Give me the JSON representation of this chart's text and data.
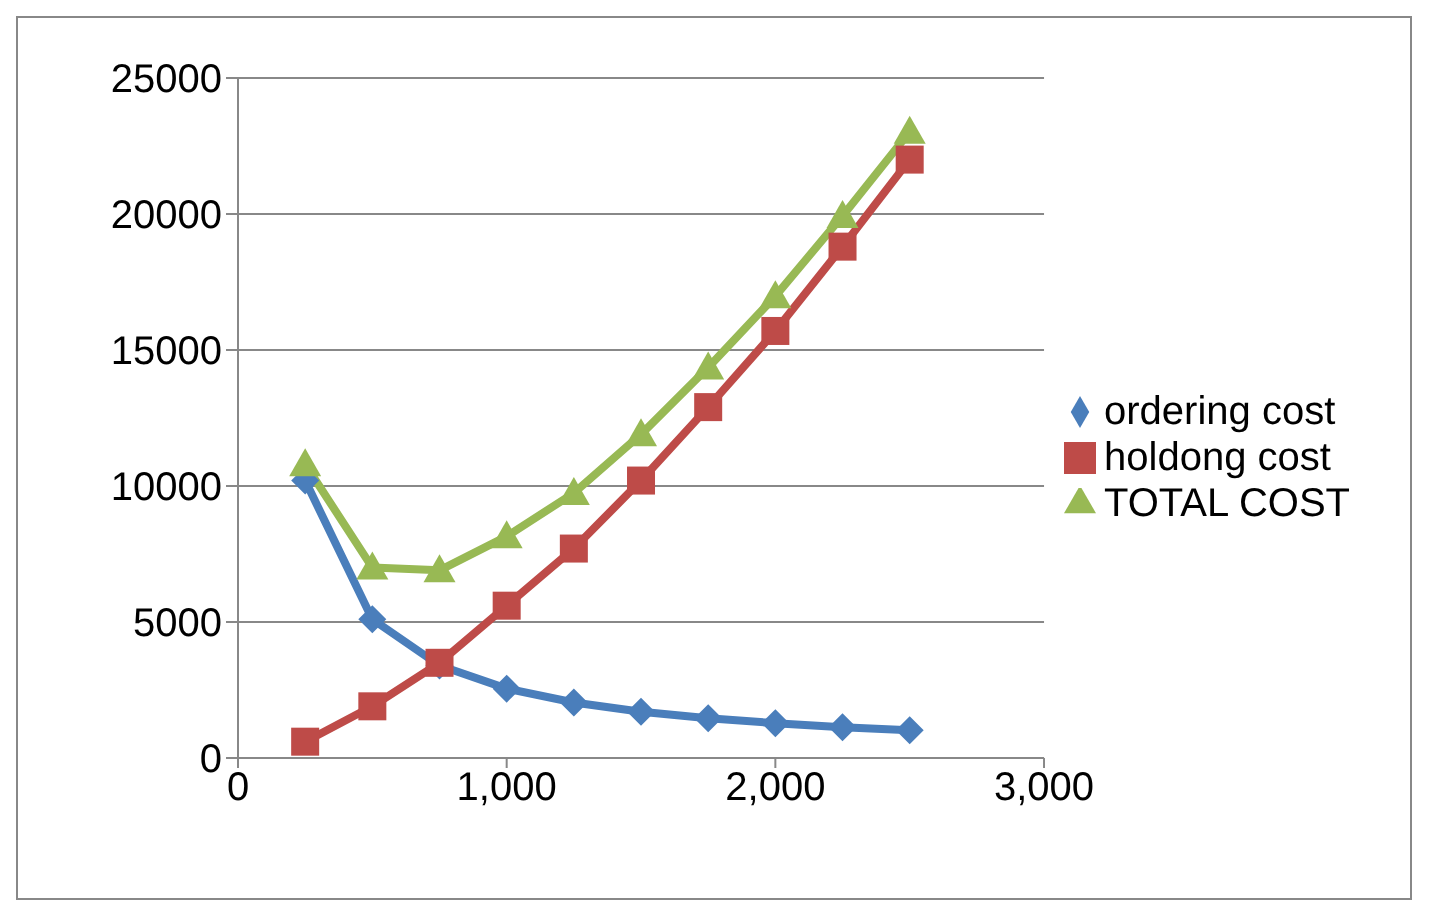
{
  "chart_data": {
    "type": "line",
    "x": [
      250,
      500,
      750,
      1000,
      1250,
      1500,
      1750,
      2000,
      2250,
      2500
    ],
    "series": [
      {
        "name": "ordering cost",
        "color": "#4a7ebb",
        "marker": "diamond",
        "values": [
          10200,
          5100,
          3400,
          2550,
          2040,
          1700,
          1460,
          1280,
          1130,
          1020
        ]
      },
      {
        "name": "holdong cost",
        "color": "#be4b48",
        "marker": "square",
        "values": [
          600,
          1900,
          3500,
          5600,
          7700,
          10200,
          12900,
          15700,
          18800,
          22000
        ]
      },
      {
        "name": "TOTAL COST",
        "color": "#98b954",
        "marker": "triangle",
        "values": [
          10800,
          7000,
          6900,
          8150,
          9740,
          11900,
          14360,
          16980,
          19930,
          23020
        ]
      }
    ],
    "xlim": [
      0,
      3000
    ],
    "xticks": [
      0,
      {
        "value": 1000,
        "label": "1,000"
      },
      {
        "value": 2000,
        "label": "2,000"
      },
      {
        "value": 3000,
        "label": "3,000"
      }
    ],
    "ylim": [
      0,
      25000
    ],
    "yticks": [
      0,
      5000,
      10000,
      15000,
      20000,
      25000
    ],
    "grid": "y",
    "legend": "right",
    "line_style": "solid"
  }
}
